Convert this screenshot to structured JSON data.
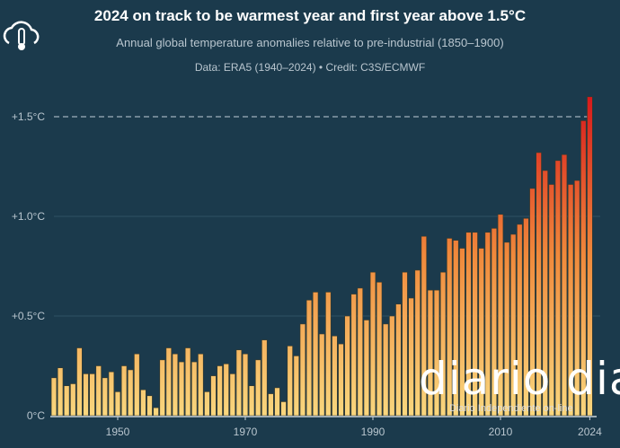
{
  "colors": {
    "background": "#1b3a4c",
    "bar_low": "#f9d77e",
    "bar_mid": "#f08a3c",
    "bar_high": "#d7191c",
    "threshold_line": "#9fb1bd"
  },
  "logo_icon": "cloud-thermometer-icon",
  "watermark": {
    "name": "diario dia",
    "tagline": "Diario Independiente on-line"
  },
  "chart_data": {
    "type": "bar",
    "title": "2024 on track to be warmest year and first year above 1.5°C",
    "subtitle": "Annual global temperature anomalies relative to pre-industrial (1850–1900)",
    "source": "Data: ERA5 (1940–2024) • Credit: C3S/ECMWF",
    "xlabel": "",
    "ylabel": "",
    "ylim": [
      0,
      1.6
    ],
    "yticks": [
      {
        "v": 0,
        "label": "0°C"
      },
      {
        "v": 0.5,
        "label": "+0.5°C"
      },
      {
        "v": 1.0,
        "label": "+1.0°C"
      },
      {
        "v": 1.5,
        "label": "+1.5°C"
      }
    ],
    "xticks": [
      1950,
      1970,
      1990,
      2010,
      2024
    ],
    "xtick_labels": [
      "1950",
      "1970",
      "1990",
      "2010",
      "2024"
    ],
    "threshold": {
      "value": 1.5,
      "style": "dashed"
    },
    "grid": "horizontal",
    "x_start": 1940,
    "values": [
      0.19,
      0.24,
      0.15,
      0.16,
      0.34,
      0.21,
      0.21,
      0.25,
      0.19,
      0.22,
      0.12,
      0.25,
      0.23,
      0.31,
      0.13,
      0.1,
      0.04,
      0.28,
      0.34,
      0.31,
      0.27,
      0.34,
      0.27,
      0.31,
      0.12,
      0.2,
      0.25,
      0.26,
      0.21,
      0.33,
      0.31,
      0.15,
      0.28,
      0.38,
      0.11,
      0.14,
      0.07,
      0.35,
      0.3,
      0.46,
      0.58,
      0.62,
      0.41,
      0.62,
      0.4,
      0.36,
      0.5,
      0.61,
      0.64,
      0.48,
      0.72,
      0.67,
      0.46,
      0.5,
      0.56,
      0.72,
      0.59,
      0.73,
      0.9,
      0.63,
      0.63,
      0.72,
      0.89,
      0.88,
      0.84,
      0.92,
      0.92,
      0.84,
      0.92,
      0.94,
      1.01,
      0.87,
      0.91,
      0.96,
      0.99,
      1.14,
      1.32,
      1.23,
      1.16,
      1.28,
      1.31,
      1.16,
      1.18,
      1.48,
      1.6
    ]
  }
}
